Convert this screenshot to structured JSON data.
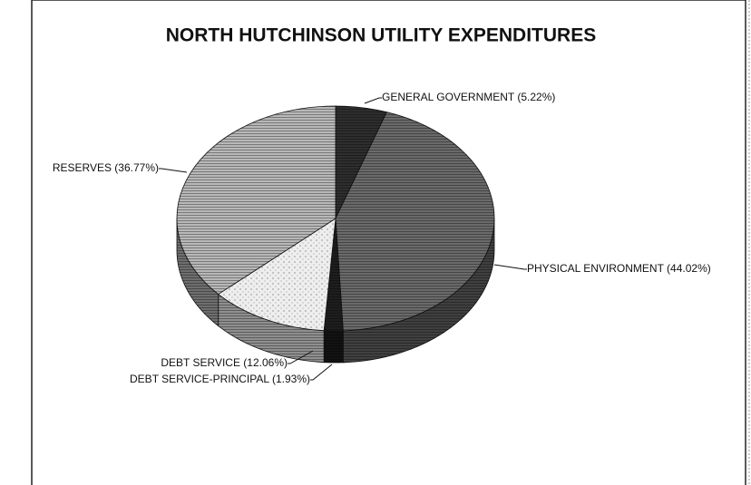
{
  "chart_data": {
    "type": "pie",
    "title": "NORTH HUTCHINSON UTILITY EXPENDITURES",
    "categories": [
      "GENERAL GOVERNMENT",
      "PHYSICAL ENVIRONMENT",
      "DEBT SERVICE-PRINCIPAL",
      "DEBT SERVICE",
      "RESERVES"
    ],
    "values": [
      5.22,
      44.02,
      1.93,
      12.06,
      36.77
    ],
    "value_labels": [
      "(5.22%)",
      "(44.02%)",
      "(1.93%)",
      "(12.06%)",
      "(36.77%)"
    ],
    "colors": [
      "#2e2e2e",
      "#6a6a6a",
      "#1e1e1e",
      "#eeeeee",
      "#b8b8b8"
    ]
  }
}
